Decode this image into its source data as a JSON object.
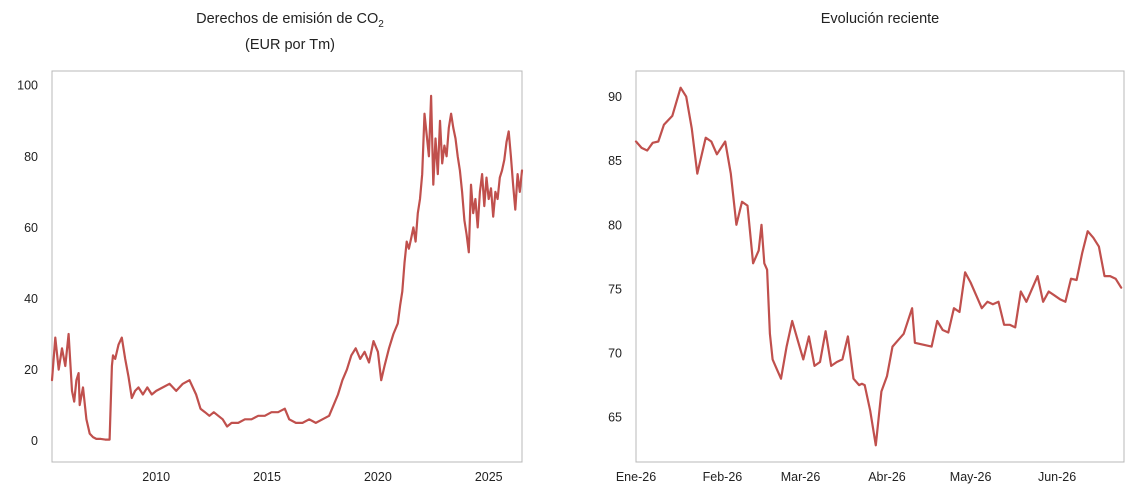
{
  "chart_data": [
    {
      "type": "line",
      "title_line1": "Derechos de emisión de CO",
      "title_sub": "2",
      "title_line2": "(EUR por Tm)",
      "xlabel": "",
      "ylabel": "",
      "xlim": [
        2005.3,
        2026.5
      ],
      "ylim": [
        -6,
        104
      ],
      "x_ticks": [
        2010,
        2015,
        2020,
        2025
      ],
      "x_tick_labels": [
        "2010",
        "2015",
        "2020",
        "2025"
      ],
      "y_ticks": [
        0,
        20,
        40,
        60,
        80,
        100
      ],
      "y_tick_labels": [
        "0",
        "20",
        "40",
        "60",
        "80",
        "100"
      ],
      "grid": false,
      "color": "#c0504d",
      "series": [
        {
          "x": [
            2005.3,
            2005.45,
            2005.6,
            2005.75,
            2005.9,
            2006.05,
            2006.2,
            2006.3,
            2006.4,
            2006.5,
            2006.55,
            2006.7,
            2006.85,
            2007.0,
            2007.15,
            2007.3,
            2007.5,
            2007.7,
            2007.9,
            2008.0,
            2008.05,
            2008.15,
            2008.3,
            2008.45,
            2008.6,
            2008.75,
            2008.9,
            2009.05,
            2009.2,
            2009.4,
            2009.6,
            2009.8,
            2010.0,
            2010.3,
            2010.6,
            2010.9,
            2011.2,
            2011.5,
            2011.8,
            2012.0,
            2012.2,
            2012.4,
            2012.6,
            2012.8,
            2013.0,
            2013.2,
            2013.4,
            2013.7,
            2014.0,
            2014.3,
            2014.6,
            2014.9,
            2015.2,
            2015.5,
            2015.8,
            2016.0,
            2016.3,
            2016.6,
            2016.9,
            2017.2,
            2017.5,
            2017.8,
            2018.0,
            2018.2,
            2018.4,
            2018.6,
            2018.8,
            2019.0,
            2019.2,
            2019.4,
            2019.6,
            2019.8,
            2020.0,
            2020.15,
            2020.3,
            2020.5,
            2020.7,
            2020.9,
            2021.0,
            2021.1,
            2021.2,
            2021.3,
            2021.4,
            2021.5,
            2021.6,
            2021.7,
            2021.8,
            2021.9,
            2022.0,
            2022.1,
            2022.2,
            2022.3,
            2022.4,
            2022.5,
            2022.6,
            2022.7,
            2022.8,
            2022.9,
            2023.0,
            2023.1,
            2023.2,
            2023.3,
            2023.4,
            2023.5,
            2023.6,
            2023.7,
            2023.8,
            2023.9,
            2024.0,
            2024.1,
            2024.2,
            2024.3,
            2024.4,
            2024.5,
            2024.6,
            2024.7,
            2024.8,
            2024.9,
            2025.0,
            2025.1,
            2025.2,
            2025.3,
            2025.4,
            2025.5,
            2025.6,
            2025.7,
            2025.8,
            2025.9,
            2026.0,
            2026.1,
            2026.2,
            2026.3,
            2026.4,
            2026.5
          ],
          "values": [
            17,
            29,
            20,
            26,
            21,
            30,
            14,
            11,
            17,
            19,
            10,
            15,
            6,
            2,
            1,
            0.5,
            0.5,
            0.3,
            0.3,
            21,
            24,
            23,
            27,
            29,
            23,
            18,
            12,
            14,
            15,
            13,
            15,
            13,
            14,
            15,
            16,
            14,
            16,
            17,
            13,
            9,
            8,
            7,
            8,
            7,
            6,
            4,
            5,
            5,
            6,
            6,
            7,
            7,
            8,
            8,
            9,
            6,
            5,
            5,
            6,
            5,
            6,
            7,
            10,
            13,
            17,
            20,
            24,
            26,
            23,
            25,
            22,
            28,
            25,
            17,
            21,
            26,
            30,
            33,
            38,
            42,
            50,
            56,
            54,
            57,
            60,
            56,
            64,
            68,
            75,
            92,
            86,
            80,
            97,
            72,
            85,
            75,
            90,
            78,
            83,
            80,
            88,
            92,
            88,
            85,
            80,
            76,
            70,
            62,
            58,
            53,
            72,
            64,
            68,
            60,
            70,
            75,
            66,
            74,
            68,
            71,
            63,
            70,
            68,
            74,
            76,
            79,
            84,
            87,
            80,
            72,
            65,
            75,
            70,
            76
          ]
        }
      ]
    },
    {
      "type": "line",
      "title": "Evolución reciente",
      "xlabel": "",
      "ylabel": "",
      "xlim": [
        0,
        175
      ],
      "ylim": [
        61.5,
        92
      ],
      "x_ticks": [
        0,
        31,
        59,
        90,
        120,
        151
      ],
      "x_tick_labels": [
        "Ene-26",
        "Feb-26",
        "Mar-26",
        "Abr-26",
        "May-26",
        "Jun-26"
      ],
      "y_ticks": [
        65,
        70,
        75,
        80,
        85,
        90
      ],
      "y_tick_labels": [
        "65",
        "70",
        "75",
        "80",
        "85",
        "90"
      ],
      "grid": false,
      "color": "#c0504d",
      "series": [
        {
          "x": [
            0,
            2,
            4,
            6,
            8,
            10,
            13,
            16,
            18,
            20,
            22,
            25,
            27,
            29,
            32,
            34,
            36,
            38,
            40,
            42,
            44,
            45,
            46,
            47,
            48,
            49,
            50,
            51,
            52,
            54,
            56,
            58,
            60,
            62,
            64,
            66,
            68,
            70,
            72,
            74,
            76,
            78,
            80,
            81,
            82,
            84,
            86,
            88,
            90,
            92,
            94,
            96,
            99,
            100,
            102,
            104,
            106,
            108,
            110,
            112,
            114,
            116,
            118,
            120,
            122,
            124,
            126,
            128,
            130,
            132,
            134,
            136,
            138,
            140,
            142,
            144,
            146,
            148,
            150,
            152,
            154,
            156,
            158,
            160,
            162,
            164,
            166,
            168,
            170,
            172,
            174
          ],
          "values": [
            86.5,
            86,
            85.8,
            86.4,
            86.5,
            87.8,
            88.5,
            90.7,
            90,
            87.5,
            84,
            86.8,
            86.5,
            85.5,
            86.5,
            84,
            80,
            81.8,
            81.5,
            77,
            78,
            80,
            77,
            76.5,
            71.5,
            69.5,
            69,
            68.5,
            68,
            70.5,
            72.5,
            71,
            69.5,
            71.3,
            69,
            69.3,
            71.7,
            69,
            69.3,
            69.5,
            71.3,
            68,
            67.5,
            67.6,
            67.5,
            65.5,
            62.8,
            67,
            68.2,
            70.5,
            71,
            71.5,
            73.5,
            70.8,
            70.7,
            70.6,
            70.5,
            72.5,
            71.8,
            71.6,
            73.5,
            73.2,
            76.3,
            75.5,
            74.5,
            73.5,
            74,
            73.8,
            74,
            72.2,
            72.2,
            72,
            74.8,
            74,
            75,
            76,
            74,
            74.8,
            74.5,
            74.2,
            74,
            75.8,
            75.7,
            77.8,
            79.5,
            79,
            78.3,
            76,
            76,
            75.8,
            75.1
          ]
        }
      ]
    }
  ]
}
